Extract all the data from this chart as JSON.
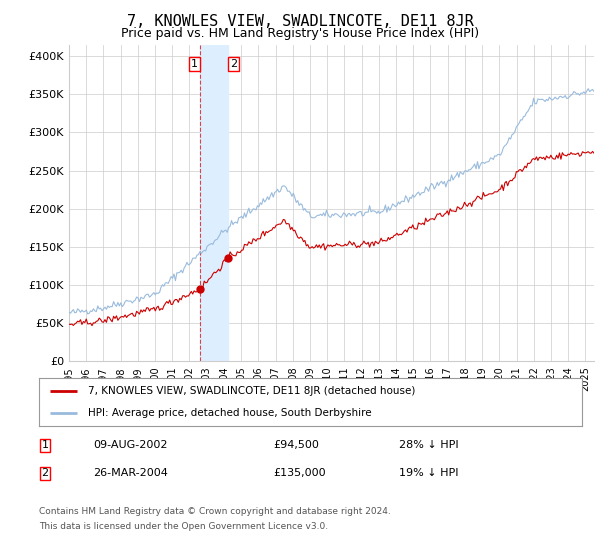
{
  "title": "7, KNOWLES VIEW, SWADLINCOTE, DE11 8JR",
  "subtitle": "Price paid vs. HM Land Registry's House Price Index (HPI)",
  "title_fontsize": 11,
  "subtitle_fontsize": 9,
  "ylabel_ticks": [
    "£0",
    "£50K",
    "£100K",
    "£150K",
    "£200K",
    "£250K",
    "£300K",
    "£350K",
    "£400K"
  ],
  "ytick_values": [
    0,
    50000,
    100000,
    150000,
    200000,
    250000,
    300000,
    350000,
    400000
  ],
  "ylim": [
    0,
    415000
  ],
  "xlim_start": 1995.0,
  "xlim_end": 2025.5,
  "sale1_date": 2002.6,
  "sale1_price": 94500,
  "sale1_label": "1",
  "sale2_date": 2004.25,
  "sale2_price": 135000,
  "sale2_label": "2",
  "legend_line1": "7, KNOWLES VIEW, SWADLINCOTE, DE11 8JR (detached house)",
  "legend_line2": "HPI: Average price, detached house, South Derbyshire",
  "table_row1": [
    "1",
    "09-AUG-2002",
    "£94,500",
    "28% ↓ HPI"
  ],
  "table_row2": [
    "2",
    "26-MAR-2004",
    "£135,000",
    "19% ↓ HPI"
  ],
  "footer_line1": "Contains HM Land Registry data © Crown copyright and database right 2024.",
  "footer_line2": "This data is licensed under the Open Government Licence v3.0.",
  "sale_color": "#cc0000",
  "hpi_color": "#99bbdd",
  "highlight_color": "#ddeeff",
  "grid_color": "#cccccc",
  "background_color": "#ffffff"
}
